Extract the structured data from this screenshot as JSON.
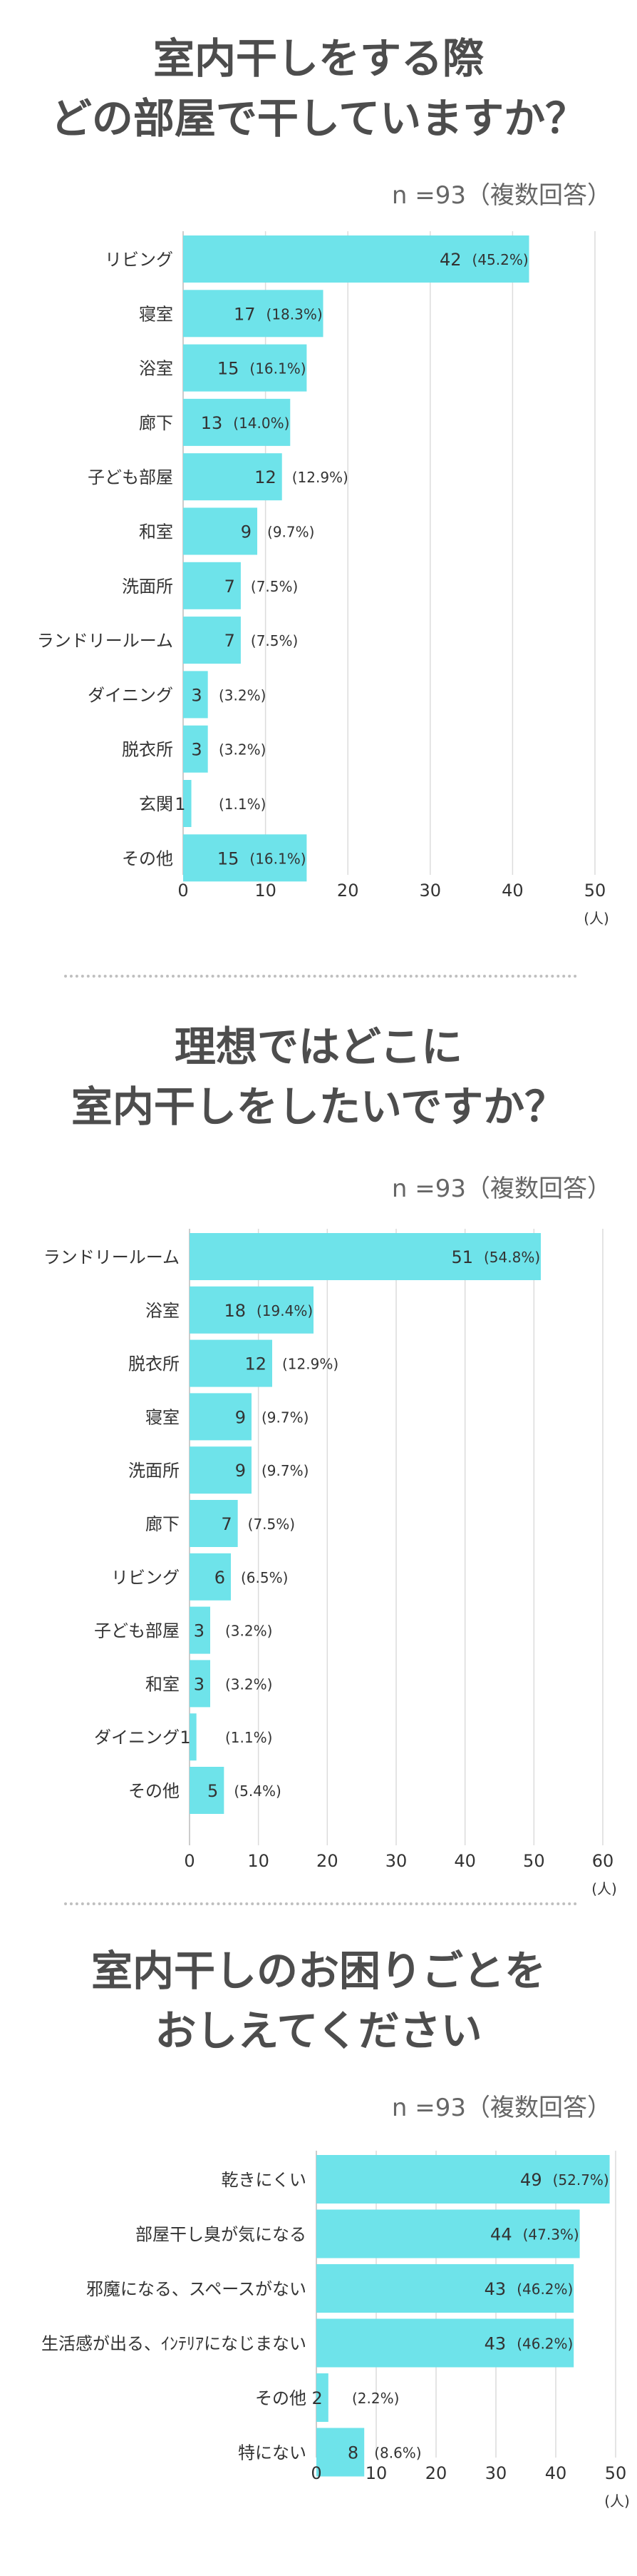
{
  "chart_data": [
    {
      "type": "bar",
      "title": "室内干しをする際どの部屋で干していますか？",
      "title_lines": [
        "室内干しをする際",
        "どの部屋で干していますか？"
      ],
      "note": "n =93（複数回答）",
      "categories": [
        "リビング",
        "寝室",
        "浴室",
        "廊下",
        "子ども部屋",
        "和室",
        "洗面所",
        "ランドリールーム",
        "ダイニング",
        "脱衣所",
        "玄関",
        "その他"
      ],
      "values": [
        42,
        17,
        15,
        13,
        12,
        9,
        7,
        7,
        3,
        3,
        1,
        15
      ],
      "percents": [
        "(45.2%)",
        "(18.3%)",
        "(16.1%)",
        "(14.0%)",
        "(12.9%)",
        "(9.7%)",
        "(7.5%)",
        "(7.5%)",
        "(3.2%)",
        "(3.2%)",
        "(1.1%)",
        "(16.1%)"
      ],
      "xlim": [
        0,
        50
      ],
      "ticks": [
        0,
        10,
        20,
        30,
        40,
        50
      ],
      "unit": "(人)",
      "bar_color": "#6ee3ea"
    },
    {
      "type": "bar",
      "title": "理想ではどこに室内干しをしたいですか？",
      "title_lines": [
        "理想ではどこに",
        "室内干しをしたいですか？"
      ],
      "note": "n =93（複数回答）",
      "categories": [
        "ランドリールーム",
        "浴室",
        "脱衣所",
        "寝室",
        "洗面所",
        "廊下",
        "リビング",
        "子ども部屋",
        "和室",
        "ダイニング",
        "その他"
      ],
      "values": [
        51,
        18,
        12,
        9,
        9,
        7,
        6,
        3,
        3,
        1,
        5
      ],
      "percents": [
        "(54.8%)",
        "(19.4%)",
        "(12.9%)",
        "(9.7%)",
        "(9.7%)",
        "(7.5%)",
        "(6.5%)",
        "(3.2%)",
        "(3.2%)",
        "(1.1%)",
        "(5.4%)"
      ],
      "xlim": [
        0,
        60
      ],
      "ticks": [
        0,
        10,
        20,
        30,
        40,
        50,
        60
      ],
      "unit": "(人)",
      "bar_color": "#6ee3ea"
    },
    {
      "type": "bar",
      "title": "室内干しのお困りごとをおしえてください",
      "title_lines": [
        "室内干しのお困りごとを",
        "おしえてください"
      ],
      "note": "n =93（複数回答）",
      "categories": [
        "乾きにくい",
        "部屋干し臭が気になる",
        "邪魔になる、スペースがない",
        "生活感が出る、ｲﾝﾃﾘｱになじまない",
        "その他",
        "特にない"
      ],
      "values": [
        49,
        44,
        43,
        43,
        2,
        8
      ],
      "percents": [
        "(52.7%)",
        "(47.3%)",
        "(46.2%)",
        "(46.2%)",
        "(2.2%)",
        "(8.6%)"
      ],
      "xlim": [
        0,
        50
      ],
      "ticks": [
        0,
        10,
        20,
        30,
        40,
        50
      ],
      "unit": "(人)",
      "bar_color": "#6ee3ea"
    }
  ]
}
